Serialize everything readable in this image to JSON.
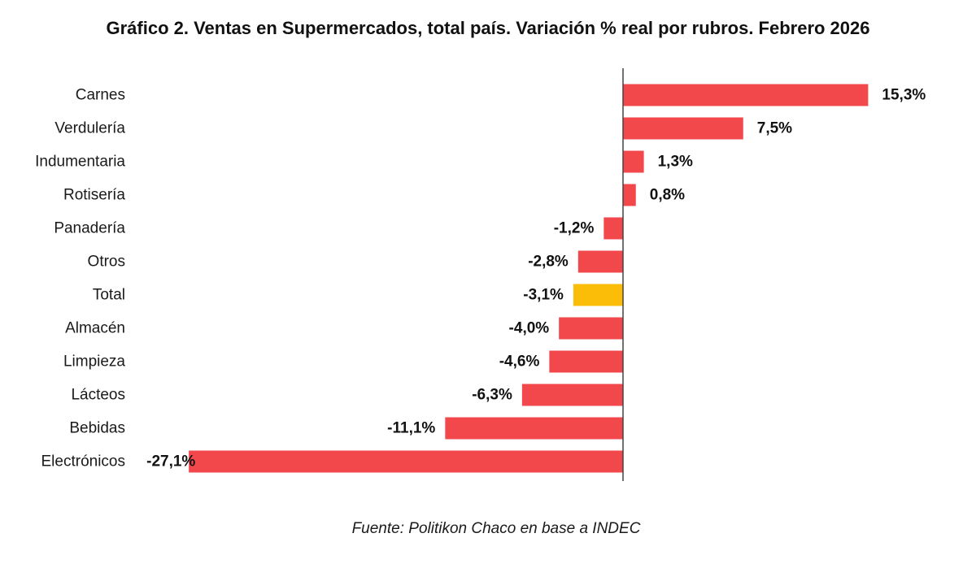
{
  "chart_data": {
    "type": "bar",
    "orientation": "horizontal",
    "title": "Gráfico 2. Ventas en Supermercados, total país. Variación % real por rubros. Febrero 2026",
    "categories": [
      "Carnes",
      "Verdulería",
      "Indumentaria",
      "Rotisería",
      "Panadería",
      "Otros",
      "Total",
      "Almacén",
      "Limpieza",
      "Lácteos",
      "Bebidas",
      "Electrónicos"
    ],
    "values": [
      15.3,
      7.5,
      1.3,
      0.8,
      -1.2,
      -2.8,
      -3.1,
      -4.0,
      -4.6,
      -6.3,
      -11.1,
      -27.1
    ],
    "value_labels": [
      "15,3%",
      "7,5%",
      "1,3%",
      "0,8%",
      "-1,2%",
      "-2,8%",
      "-3,1%",
      "-4,0%",
      "-4,6%",
      "-6,3%",
      "-11,1%",
      "-27,1%"
    ],
    "highlight_category": "Total",
    "colors": {
      "bar": "#f2474b",
      "highlight": "#fbbd08",
      "axis": "#444444"
    },
    "xlim": [
      -27.1,
      15.3
    ],
    "grid": false,
    "legend": "none",
    "xlabel": "",
    "ylabel": ""
  },
  "source": "Fuente: Politikon Chaco en base a INDEC"
}
